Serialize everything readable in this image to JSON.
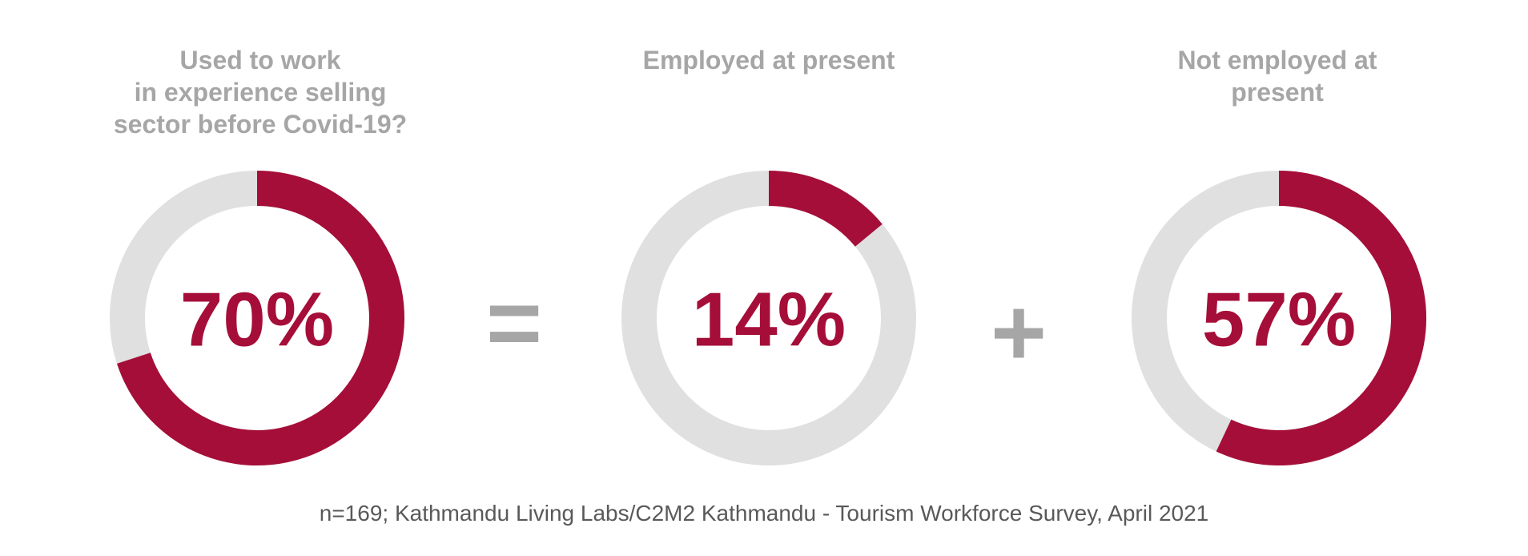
{
  "colors": {
    "accent": "#a50e38",
    "track": "#e0e0e0",
    "title": "#a6a6a6",
    "source": "#595959"
  },
  "chart_data": [
    {
      "type": "pie",
      "title": "Used to work\nin experience selling\nsector before Covid-19?",
      "value_label": "70%",
      "values": [
        70,
        30
      ]
    },
    {
      "type": "pie",
      "title": "Employed at present",
      "value_label": "14%",
      "values": [
        14,
        86
      ]
    },
    {
      "type": "pie",
      "title": "Not employed at\npresent",
      "value_label": "57%",
      "values": [
        57,
        43
      ]
    }
  ],
  "operators": {
    "equals": "=",
    "plus": "+"
  },
  "source": "n=169; Kathmandu Living Labs/C2M2 Kathmandu - Tourism Workforce Survey, April 2021"
}
